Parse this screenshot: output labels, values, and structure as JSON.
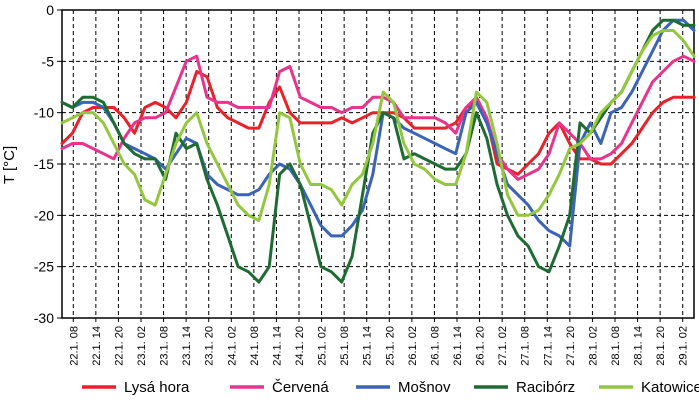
{
  "chart_data": {
    "type": "line",
    "ylabel": "T [°C]",
    "xlabel": "",
    "ylim": [
      -30,
      0
    ],
    "y_ticks": [
      0,
      -5,
      -10,
      -15,
      -20,
      -25,
      -30
    ],
    "x_ticks": [
      "22.1. 08",
      "22.1. 14",
      "22.1. 20",
      "23.1. 02",
      "23.1. 08",
      "23.1. 14",
      "23.1. 20",
      "24.1. 02",
      "24.1. 08",
      "24.1. 14",
      "24.1. 20",
      "25.1. 02",
      "25.1. 08",
      "25.1. 14",
      "25.1. 20",
      "26.1. 02",
      "26.1. 08",
      "26.1. 14",
      "26.1. 20",
      "27.1. 02",
      "27.1. 08",
      "27.1. 14",
      "27.1. 20",
      "28.1. 02",
      "28.1. 08",
      "28.1. 14",
      "28.1. 20",
      "29.1. 02"
    ],
    "grid": true,
    "legend_position": "bottom",
    "series": [
      {
        "name": "Lysá hora",
        "color": "#e8212a",
        "values": [
          -13,
          -12,
          -10,
          -9.5,
          -9.5,
          -9.5,
          -10.5,
          -12,
          -9.5,
          -9,
          -9.5,
          -10.5,
          -9,
          -6,
          -6.5,
          -9.5,
          -10.5,
          -11,
          -11.5,
          -11.5,
          -9,
          -7.5,
          -10,
          -11,
          -11,
          -11,
          -11,
          -10.5,
          -11,
          -10.5,
          -10,
          -10,
          -10,
          -10.5,
          -11.5,
          -11.5,
          -11.5,
          -11.5,
          -11,
          -9.5,
          -9,
          -10.5,
          -15,
          -15.5,
          -16,
          -15,
          -14,
          -12,
          -11,
          -13,
          -14.5,
          -14.5,
          -15,
          -15,
          -14,
          -13,
          -11.5,
          -10,
          -9,
          -8.5,
          -8.5,
          -8.5
        ]
      },
      {
        "name": "Červená",
        "color": "#e8348d",
        "values": [
          -13.5,
          -13,
          -13,
          -13.5,
          -14,
          -14.5,
          -12.5,
          -11,
          -10.5,
          -10.5,
          -10,
          -7.5,
          -5,
          -4.5,
          -8.5,
          -9,
          -9,
          -9.5,
          -9.5,
          -9.5,
          -9.5,
          -6,
          -5.5,
          -8.5,
          -9,
          -9.5,
          -9.5,
          -10,
          -9.5,
          -9.5,
          -8.5,
          -8.5,
          -9,
          -10.5,
          -10.5,
          -10.5,
          -10.5,
          -11,
          -12,
          -9.5,
          -8.5,
          -10.5,
          -14,
          -15.5,
          -16.5,
          -16,
          -15.5,
          -14,
          -11,
          -12,
          -13,
          -14.5,
          -14.5,
          -14,
          -13,
          -11,
          -9,
          -7,
          -6,
          -5,
          -4.5,
          -5
        ]
      },
      {
        "name": "Mošnov",
        "color": "#3b63b7",
        "values": [
          -9,
          -9.5,
          -9,
          -9,
          -9.5,
          -11,
          -13,
          -13.5,
          -14,
          -14.5,
          -15.5,
          -14,
          -12.5,
          -13,
          -16,
          -17,
          -17.5,
          -18,
          -18,
          -17.5,
          -16,
          -15,
          -15.5,
          -17,
          -19,
          -21,
          -22,
          -22,
          -21,
          -19.5,
          -16,
          -10,
          -10.5,
          -11.5,
          -12,
          -12.5,
          -13,
          -13.5,
          -14,
          -10,
          -9,
          -11,
          -14,
          -17,
          -18,
          -19,
          -20.5,
          -21.5,
          -22,
          -23,
          -13,
          -11,
          -13,
          -10,
          -9.5,
          -8,
          -6,
          -4,
          -2,
          -1,
          -1,
          -2
        ]
      },
      {
        "name": "Racibórz",
        "color": "#1e6b34",
        "values": [
          -9,
          -9.5,
          -8.5,
          -8.5,
          -9,
          -11,
          -13,
          -14,
          -14.5,
          -14.5,
          -16.5,
          -12,
          -13.5,
          -13,
          -16.5,
          -19,
          -22,
          -25,
          -25.5,
          -26.5,
          -25,
          -16,
          -15,
          -17,
          -21,
          -25,
          -25.5,
          -26.5,
          -24,
          -18,
          -12,
          -10,
          -10.5,
          -14.5,
          -14,
          -14.5,
          -15,
          -15.5,
          -15.5,
          -14,
          -10,
          -12.5,
          -17,
          -20,
          -22,
          -23,
          -25,
          -25.5,
          -23,
          -20,
          -11,
          -12,
          -10.5,
          -9,
          -8,
          -6,
          -4,
          -2,
          -1,
          -1,
          -1.5,
          -1.5
        ]
      },
      {
        "name": "Katowice",
        "color": "#93c83e",
        "values": [
          -11,
          -10.5,
          -10,
          -10,
          -11,
          -13,
          -15,
          -16,
          -18.5,
          -19,
          -16,
          -13,
          -11,
          -10,
          -13,
          -15,
          -17,
          -19,
          -20,
          -20.5,
          -17,
          -10,
          -10.5,
          -15,
          -17,
          -17,
          -17.5,
          -19,
          -17,
          -16,
          -13,
          -8,
          -9,
          -13,
          -15,
          -15.5,
          -16.5,
          -17,
          -17,
          -14,
          -8,
          -9,
          -13,
          -18,
          -20,
          -20,
          -19.5,
          -18,
          -16,
          -13.5,
          -13,
          -12,
          -10,
          -9,
          -8,
          -6,
          -4,
          -2.5,
          -2,
          -2,
          -3,
          -4.5
        ]
      }
    ]
  }
}
